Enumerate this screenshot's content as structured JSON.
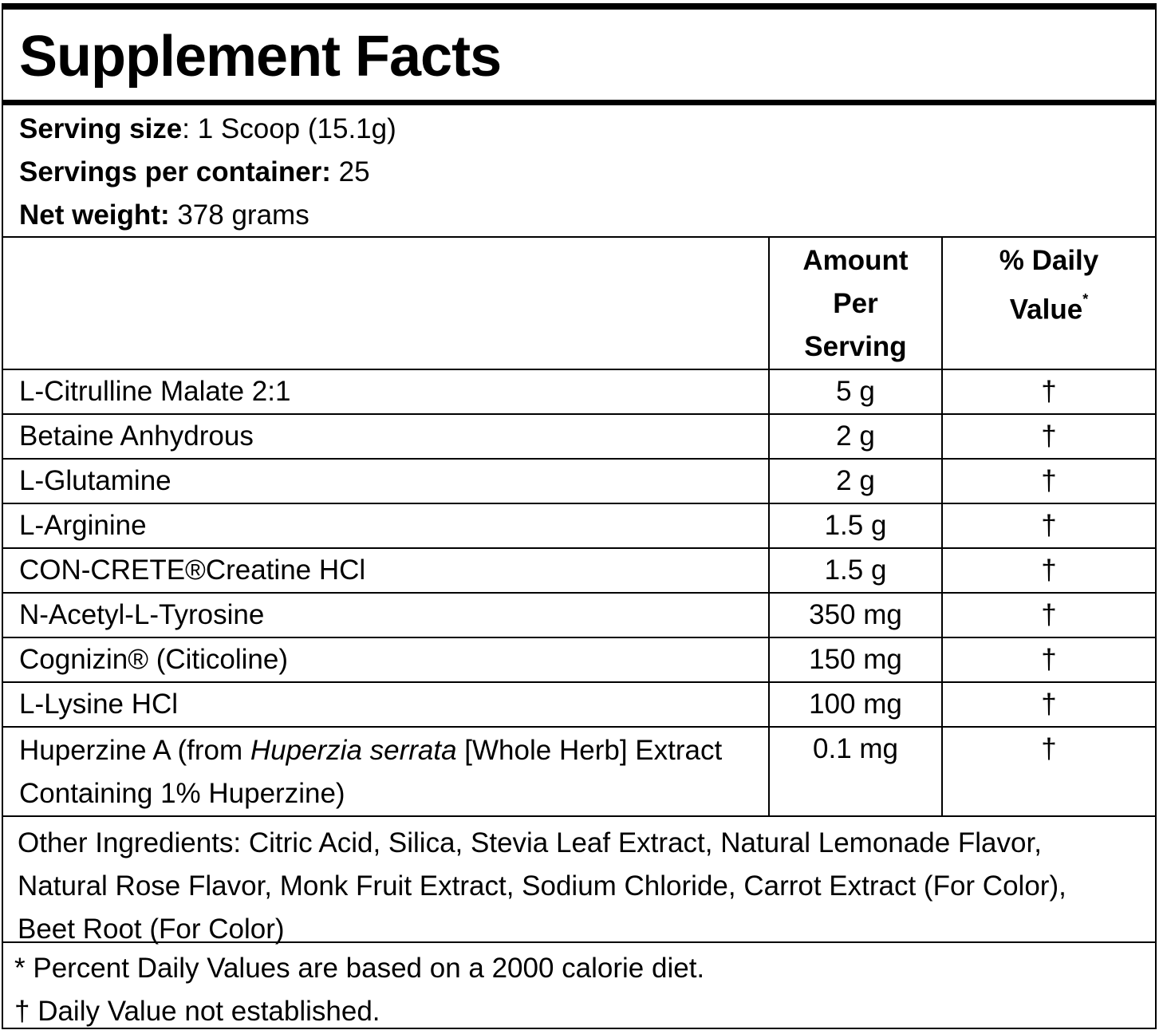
{
  "title": "Supplement Facts",
  "serving": {
    "size_label": "Serving size",
    "size_value": ": 1 Scoop (15.1g)",
    "per_container_label": "Servings per container:",
    "per_container_value": " 25",
    "net_weight_label": "Net weight:",
    "net_weight_value": " 378 grams"
  },
  "table": {
    "header_amount_1": "Amount",
    "header_amount_2": "Per",
    "header_amount_3": "Serving",
    "header_dv_1": "% Daily",
    "header_dv_2": "Value",
    "header_dv_mark": "*",
    "rows": [
      {
        "name": "L-Citrulline Malate 2:1",
        "amount": "5 g",
        "dv": "†"
      },
      {
        "name": "Betaine Anhydrous",
        "amount": "2 g",
        "dv": "†"
      },
      {
        "name": "L-Glutamine",
        "amount": "2 g",
        "dv": "†"
      },
      {
        "name": "L-Arginine",
        "amount": "1.5 g",
        "dv": "†"
      },
      {
        "name": "CON-CRETE®Creatine HCl",
        "amount": "1.5 g",
        "dv": "†"
      },
      {
        "name": "N-Acetyl-L-Tyrosine",
        "amount": "350 mg",
        "dv": "†"
      },
      {
        "name": "Cognizin® (Citicoline)",
        "amount": "150 mg",
        "dv": "†"
      },
      {
        "name": "L-Lysine HCl",
        "amount": "100 mg",
        "dv": "†"
      }
    ],
    "last_row": {
      "name_prefix": "Huperzine A (from ",
      "name_italic": "Huperzia serrata",
      "name_suffix": " [Whole Herb] Extract Containing 1% Huperzine)",
      "amount": "0.1 mg",
      "dv": "†"
    }
  },
  "other_ingredients": "Other Ingredients: Citric Acid, Silica, Stevia Leaf Extract, Natural Lemonade Flavor, Natural Rose Flavor, Monk Fruit Extract, Sodium Chloride, Carrot Extract (For Color), Beet Root (For Color)",
  "footnotes": {
    "percent_note": "* Percent Daily Values are based on a 2000 calorie diet.",
    "dagger_note": "† Daily Value not established."
  }
}
